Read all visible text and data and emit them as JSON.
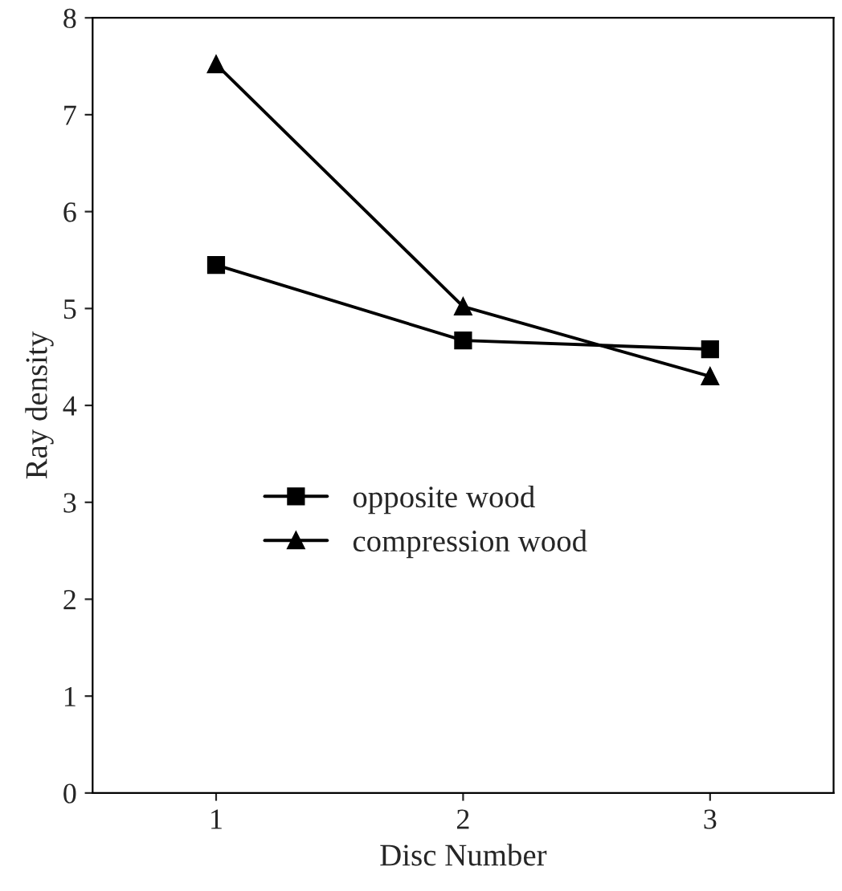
{
  "chart_data": {
    "type": "line",
    "xlabel": "Disc Number",
    "ylabel": "Ray density",
    "x": [
      1,
      2,
      3
    ],
    "series": [
      {
        "name": "opposite wood",
        "color": "#000000",
        "marker": "square",
        "values": [
          5.45,
          4.67,
          4.58
        ]
      },
      {
        "name": "compression wood",
        "color": "#000000",
        "marker": "triangle",
        "values": [
          7.52,
          5.02,
          4.3
        ]
      }
    ],
    "xlim": [
      0.5,
      3.5
    ],
    "xticks": [
      1,
      2,
      3
    ],
    "ylim": [
      0,
      8
    ],
    "yticks": [
      0,
      1,
      2,
      3,
      4,
      5,
      6,
      7,
      8
    ],
    "grid": false,
    "legend": "center",
    "line_style": "solid"
  }
}
